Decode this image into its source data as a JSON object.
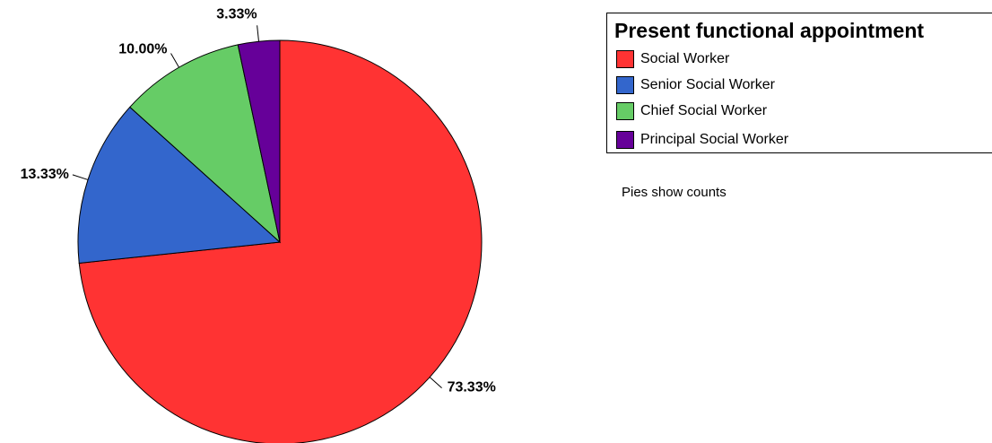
{
  "chart_data": {
    "type": "pie",
    "legend_title": "Present functional appointment",
    "legend_position": "top-right",
    "note": "Pies show counts",
    "slices": [
      {
        "name": "Social Worker",
        "value": 73.33,
        "label": "73.33%",
        "color": "#ff3333"
      },
      {
        "name": "Senior Social Worker",
        "value": 13.33,
        "label": "13.33%",
        "color": "#3366cc"
      },
      {
        "name": "Chief Social Worker",
        "value": 10.0,
        "label": "10.00%",
        "color": "#66cc66"
      },
      {
        "name": "Principal Social Worker",
        "value": 3.33,
        "label": "3.33%",
        "color": "#660099"
      }
    ]
  }
}
